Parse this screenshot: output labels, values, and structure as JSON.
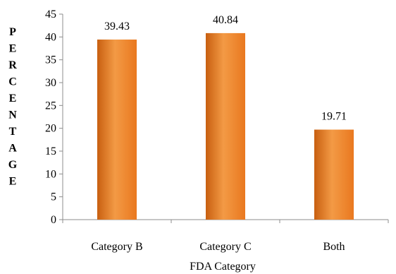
{
  "chart_data": {
    "type": "bar",
    "title": "",
    "xlabel": "FDA Category",
    "ylabel": "PERCENTAGE",
    "categories": [
      "Category B",
      "Category C",
      "Both"
    ],
    "values": [
      39.43,
      40.84,
      19.71
    ],
    "value_labels": [
      "39.43",
      "40.84",
      "19.71"
    ],
    "ylim": [
      0,
      45
    ],
    "yticks": [
      0,
      5,
      10,
      15,
      20,
      25,
      30,
      35,
      40,
      45
    ],
    "grid": false,
    "legend": "none",
    "bar_color": "#e9781f",
    "bar_color_light": "#f39a45",
    "bar_color_dark": "#c85f10"
  }
}
